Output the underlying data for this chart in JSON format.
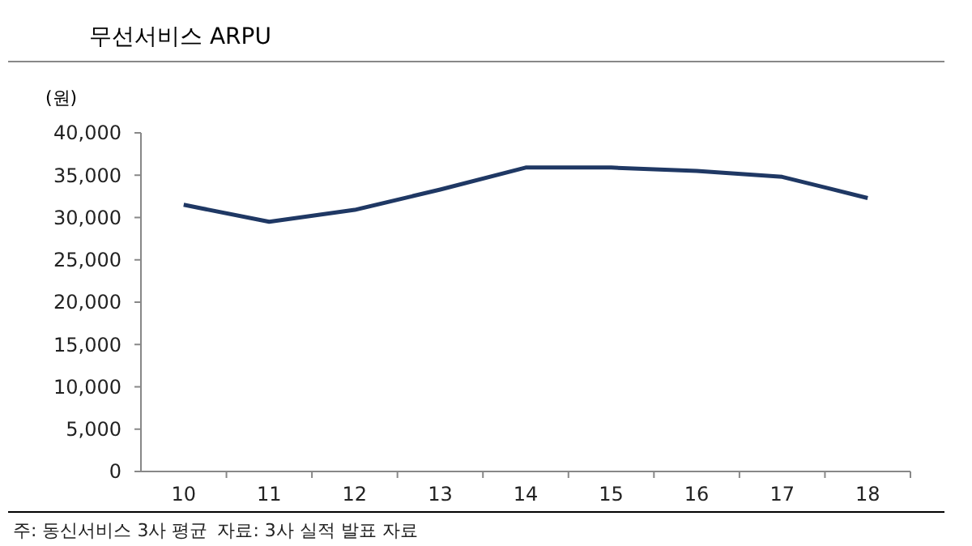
{
  "chart_data": {
    "type": "line",
    "title": "무선서비스 ARPU",
    "ylabel": "(원)",
    "categories": [
      "10",
      "11",
      "12",
      "13",
      "14",
      "15",
      "16",
      "17",
      "18"
    ],
    "series": [
      {
        "color": "#1f3864",
        "values": [
          31500,
          29500,
          30900,
          33300,
          35900,
          35900,
          35500,
          34800,
          32300
        ]
      }
    ],
    "ylim": [
      0,
      40000
    ],
    "yticks": [
      {
        "value": 0,
        "label": "0"
      },
      {
        "value": 5000,
        "label": "5,000"
      },
      {
        "value": 10000,
        "label": "10,000"
      },
      {
        "value": 15000,
        "label": "15,000"
      },
      {
        "value": 20000,
        "label": "20,000"
      },
      {
        "value": 25000,
        "label": "25,000"
      },
      {
        "value": 30000,
        "label": "30,000"
      },
      {
        "value": 35000,
        "label": "35,000"
      },
      {
        "value": 40000,
        "label": "40,000"
      }
    ],
    "annotations": [
      "주: 동신서비스 3사 평균",
      "자료: 3사 실적 발표 자료"
    ],
    "grid": false,
    "marker": "none",
    "line_style": "solid"
  }
}
